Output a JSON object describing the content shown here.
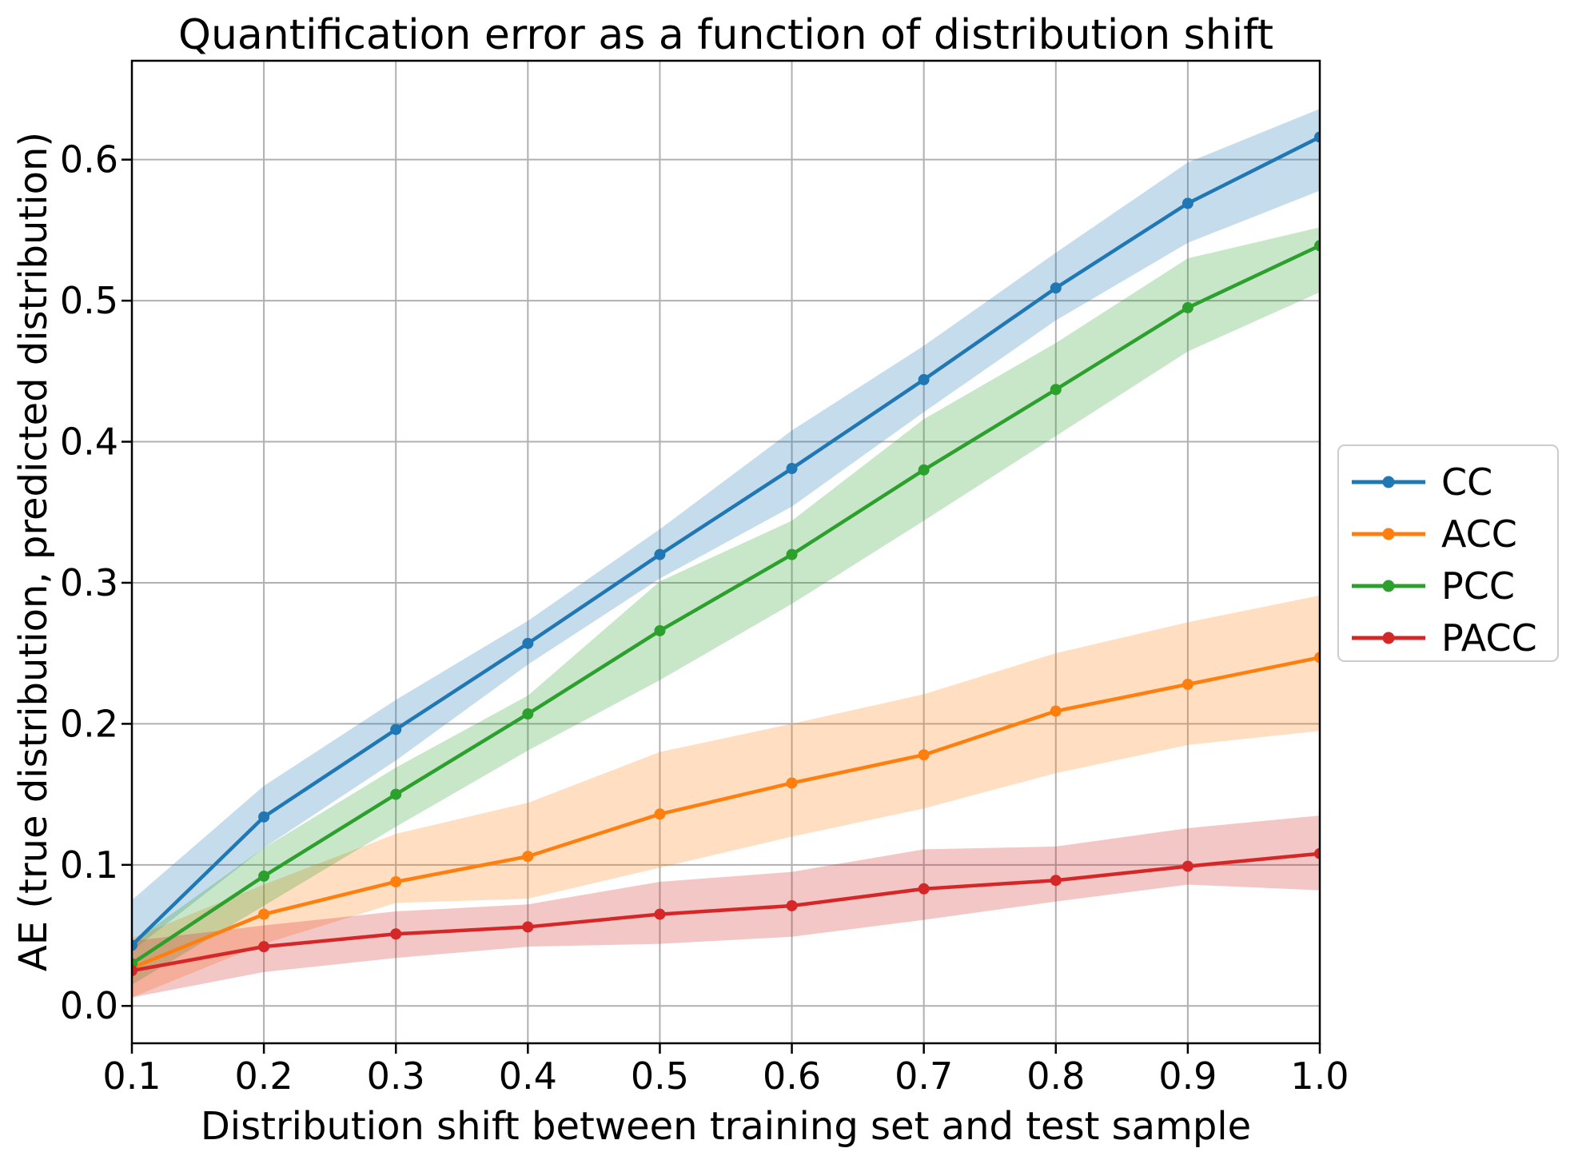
{
  "chart_data": {
    "type": "line",
    "title": "Quantification error as a function of distribution shift",
    "xlabel": "Distribution shift between training set and test sample",
    "ylabel": "AE (true distribution, predicted distribution)",
    "grid": true,
    "legend_position": "outside-right",
    "background_color": "#ffffff",
    "gridline_color": "#b0b0b0",
    "spine_color": "#000000",
    "band_alpha": 0.26,
    "xlim": [
      0.1,
      1.0
    ],
    "ylim": [
      -0.0265,
      0.6701
    ],
    "xticks": [
      "0.1",
      "0.2",
      "0.3",
      "0.4",
      "0.5",
      "0.6",
      "0.7",
      "0.8",
      "0.9",
      "1.0"
    ],
    "xtick_values": [
      0.1,
      0.2,
      0.3,
      0.4,
      0.5,
      0.6,
      0.7,
      0.8,
      0.9,
      1.0
    ],
    "yticks": [
      "0.0",
      "0.1",
      "0.2",
      "0.3",
      "0.4",
      "0.5",
      "0.6"
    ],
    "ytick_values": [
      0.0,
      0.1,
      0.2,
      0.3,
      0.4,
      0.5,
      0.6
    ],
    "x": [
      0.1,
      0.2,
      0.3,
      0.4,
      0.5,
      0.6,
      0.7,
      0.8,
      0.9,
      1.0
    ],
    "series": [
      {
        "name": "CC",
        "color": "#1f77b4",
        "values": [
          0.043,
          0.134,
          0.196,
          0.257,
          0.32,
          0.381,
          0.444,
          0.509,
          0.569,
          0.616
        ],
        "band_lower": [
          0.039,
          0.112,
          0.174,
          0.242,
          0.303,
          0.354,
          0.421,
          0.486,
          0.541,
          0.578
        ],
        "band_upper": [
          0.075,
          0.156,
          0.217,
          0.273,
          0.338,
          0.408,
          0.468,
          0.534,
          0.598,
          0.636
        ]
      },
      {
        "name": "ACC",
        "color": "#ff7f0e",
        "values": [
          0.027,
          0.065,
          0.088,
          0.106,
          0.136,
          0.158,
          0.178,
          0.209,
          0.228,
          0.247
        ],
        "band_lower": [
          0.006,
          0.044,
          0.073,
          0.076,
          0.098,
          0.12,
          0.14,
          0.165,
          0.185,
          0.195
        ],
        "band_upper": [
          0.048,
          0.086,
          0.122,
          0.144,
          0.18,
          0.2,
          0.221,
          0.25,
          0.272,
          0.291
        ]
      },
      {
        "name": "PCC",
        "color": "#2ca02c",
        "values": [
          0.03,
          0.092,
          0.15,
          0.207,
          0.266,
          0.32,
          0.38,
          0.437,
          0.495,
          0.539
        ],
        "band_lower": [
          0.015,
          0.071,
          0.127,
          0.181,
          0.231,
          0.285,
          0.344,
          0.404,
          0.464,
          0.506
        ],
        "band_upper": [
          0.045,
          0.112,
          0.169,
          0.22,
          0.301,
          0.344,
          0.416,
          0.47,
          0.53,
          0.552
        ]
      },
      {
        "name": "PACC",
        "color": "#d62728",
        "values": [
          0.025,
          0.042,
          0.051,
          0.056,
          0.065,
          0.071,
          0.083,
          0.089,
          0.099,
          0.108
        ],
        "band_lower": [
          0.006,
          0.024,
          0.034,
          0.042,
          0.044,
          0.049,
          0.061,
          0.074,
          0.086,
          0.082
        ],
        "band_upper": [
          0.046,
          0.057,
          0.067,
          0.072,
          0.088,
          0.095,
          0.111,
          0.113,
          0.126,
          0.135
        ]
      }
    ]
  }
}
